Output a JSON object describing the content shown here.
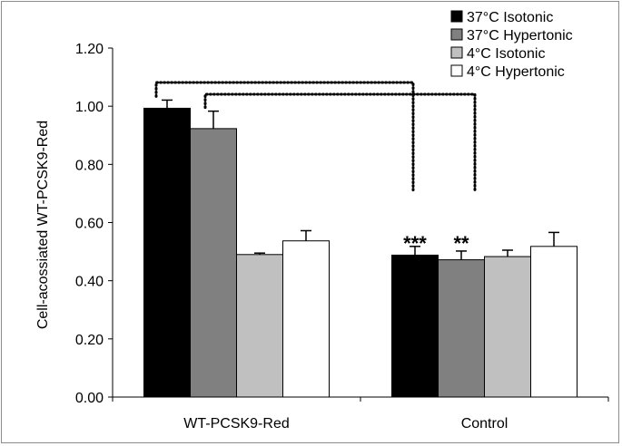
{
  "chart_data": {
    "type": "bar",
    "ylabel": "Cell-acossiated WT-PCSK9-Red",
    "xlabel": "",
    "ylim": [
      0,
      1.2
    ],
    "yticks": [
      "0.00",
      "0.20",
      "0.40",
      "0.60",
      "0.80",
      "1.00",
      "1.20"
    ],
    "categories": [
      "WT-PCSK9-Red",
      "Control"
    ],
    "series": [
      {
        "name": "37°C Isotonic",
        "color": "#000000",
        "values": [
          0.993,
          0.488
        ],
        "errors": [
          0.028,
          0.03
        ]
      },
      {
        "name": "37°C Hypertonic",
        "color": "#808080",
        "values": [
          0.923,
          0.472
        ],
        "errors": [
          0.06,
          0.03
        ]
      },
      {
        "name": "4°C Isotonic",
        "color": "#c0c0c0",
        "values": [
          0.49,
          0.483
        ],
        "errors": [
          0.005,
          0.022
        ]
      },
      {
        "name": "4°C Hypertonic",
        "color": "#ffffff",
        "values": [
          0.537,
          0.518
        ],
        "errors": [
          0.035,
          0.048
        ]
      }
    ],
    "significance": [
      {
        "label": "***",
        "from_series": 0,
        "from_cat": 0,
        "to_series": 0,
        "to_cat": 1
      },
      {
        "label": "**",
        "from_series": 1,
        "from_cat": 0,
        "to_series": 1,
        "to_cat": 1
      }
    ],
    "grid": false,
    "legend_position": "top-right"
  }
}
